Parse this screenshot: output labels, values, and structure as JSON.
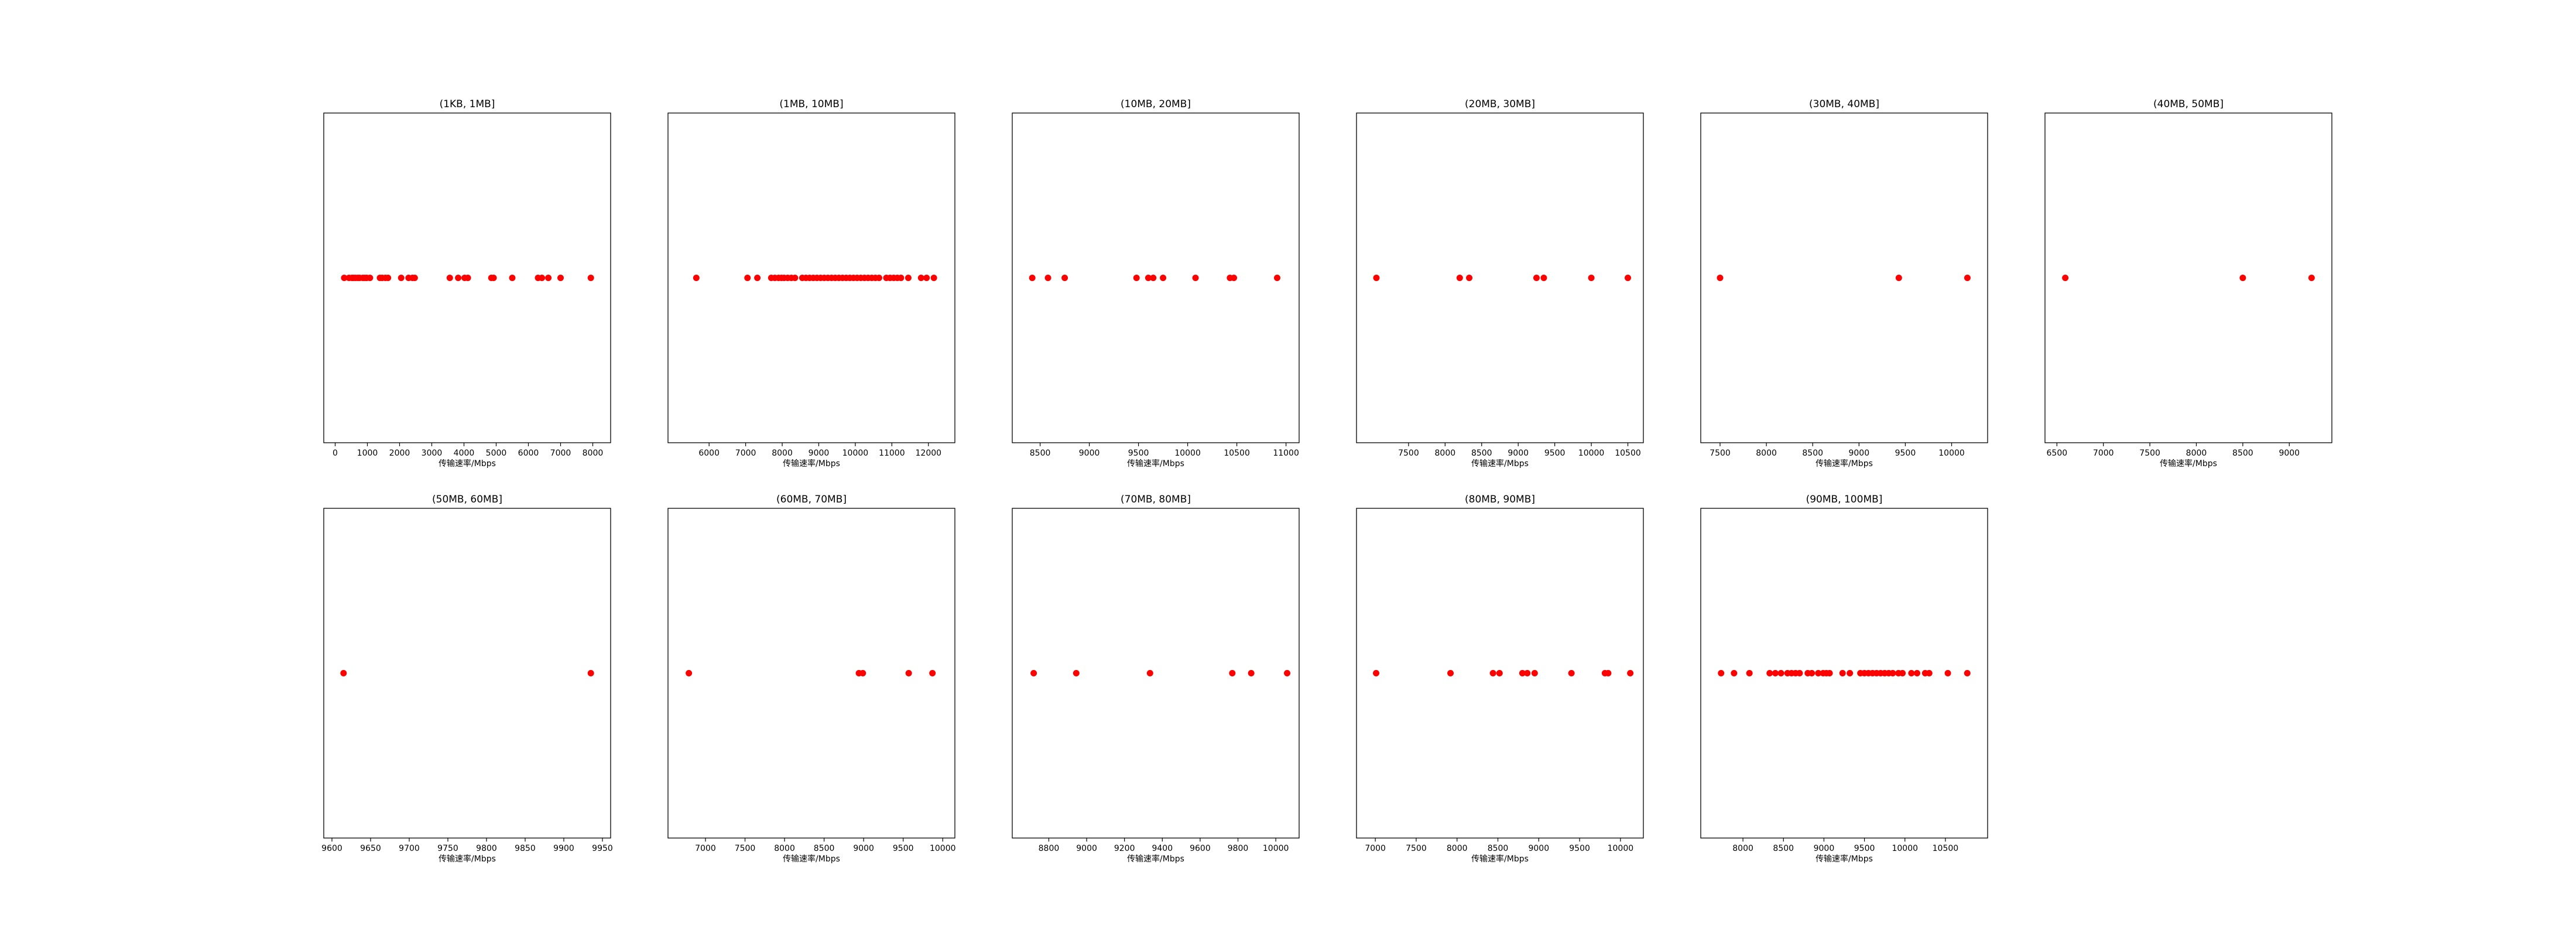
{
  "figure": {
    "background": "#ffffff",
    "marker_color": "#ff0000",
    "frame_color": "#000000"
  },
  "chart_data": [
    {
      "type": "scatter",
      "title": "(1KB, 1MB]",
      "xlabel": "传输速率/Mbps",
      "xlim": [
        -100,
        8300
      ],
      "xticks": [
        0,
        1000,
        2000,
        3000,
        4000,
        5000,
        6000,
        7000,
        8000
      ],
      "x": [
        280,
        430,
        520,
        570,
        630,
        700,
        760,
        860,
        920,
        980,
        1080,
        1390,
        1460,
        1560,
        1640,
        2050,
        2280,
        2400,
        2470,
        3560,
        3820,
        4020,
        4120,
        4850,
        4920,
        5500,
        6300,
        6420,
        6620,
        7000,
        7940
      ]
    },
    {
      "type": "scatter",
      "title": "(1MB, 10MB]",
      "xlabel": "传输速率/Mbps",
      "xlim": [
        5100,
        12500
      ],
      "xticks": [
        6000,
        7000,
        8000,
        9000,
        10000,
        11000,
        12000
      ],
      "x": [
        5650,
        7050,
        7320,
        7700,
        7800,
        7900,
        7980,
        8050,
        8150,
        8250,
        8350,
        8550,
        8650,
        8750,
        8850,
        8950,
        9050,
        9150,
        9250,
        9350,
        9450,
        9550,
        9650,
        9750,
        9850,
        9950,
        10050,
        10150,
        10250,
        10350,
        10450,
        10550,
        10650,
        10850,
        10950,
        11050,
        11150,
        11250,
        11450,
        11800,
        11950,
        12150
      ]
    },
    {
      "type": "scatter",
      "title": "(10MB, 20MB]",
      "xlabel": "传输速率/Mbps",
      "xlim": [
        8300,
        11050
      ],
      "xticks": [
        8500,
        9000,
        9500,
        10000,
        10500,
        11000
      ],
      "x": [
        8420,
        8580,
        8750,
        9480,
        9600,
        9650,
        9750,
        10080,
        10430,
        10470,
        10910
      ]
    },
    {
      "type": "scatter",
      "title": "(20MB, 30MB]",
      "xlabel": "传输速率/Mbps",
      "xlim": [
        6900,
        10600
      ],
      "xticks": [
        7500,
        8000,
        8500,
        9000,
        9500,
        10000,
        10500
      ],
      "x": [
        7060,
        8200,
        8330,
        9250,
        9350,
        10000,
        10500
      ]
    },
    {
      "type": "scatter",
      "title": "(30MB, 40MB]",
      "xlabel": "传输速率/Mbps",
      "xlim": [
        7380,
        10300
      ],
      "xticks": [
        7500,
        8000,
        8500,
        9000,
        9500,
        10000
      ],
      "x": [
        7500,
        9430,
        10170
      ]
    },
    {
      "type": "scatter",
      "title": "(40MB, 50MB]",
      "xlabel": "传输速率/Mbps",
      "xlim": [
        6460,
        9370
      ],
      "xticks": [
        6500,
        7000,
        7500,
        8000,
        8500,
        9000
      ],
      "x": [
        6590,
        8500,
        9240
      ]
    },
    {
      "type": "scatter",
      "title": "(50MB, 60MB]",
      "xlabel": "传输速率/Mbps",
      "xlim": [
        9600,
        9950
      ],
      "xticks": [
        9600,
        9650,
        9700,
        9750,
        9800,
        9850,
        9900,
        9950
      ],
      "x": [
        9615,
        9935
      ]
    },
    {
      "type": "scatter",
      "title": "(60MB, 70MB]",
      "xlabel": "传输速率/Mbps",
      "xlim": [
        6630,
        10050
      ],
      "xticks": [
        7000,
        7500,
        8000,
        8500,
        9000,
        9500,
        10000
      ],
      "x": [
        6790,
        8940,
        8990,
        9570,
        9870
      ]
    },
    {
      "type": "scatter",
      "title": "(70MB, 80MB]",
      "xlabel": "传输速率/Mbps",
      "xlim": [
        8650,
        10080
      ],
      "xticks": [
        8800,
        9000,
        9200,
        9400,
        9600,
        9800,
        10000
      ],
      "x": [
        8720,
        8945,
        9335,
        9770,
        9870,
        10060
      ]
    },
    {
      "type": "scatter",
      "title": "(80MB, 90MB]",
      "xlabel": "传输速率/Mbps",
      "xlim": [
        6870,
        10180
      ],
      "xticks": [
        7000,
        7500,
        8000,
        8500,
        9000,
        9500,
        10000
      ],
      "x": [
        7010,
        7920,
        8440,
        8520,
        8800,
        8860,
        8950,
        9400,
        9810,
        9850,
        10120
      ]
    },
    {
      "type": "scatter",
      "title": "(90MB, 100MB]",
      "xlabel": "传输速率/Mbps",
      "xlim": [
        7580,
        10920
      ],
      "xticks": [
        8000,
        8500,
        9000,
        9500,
        10000,
        10500
      ],
      "x": [
        7730,
        7890,
        8080,
        8330,
        8400,
        8470,
        8550,
        8600,
        8650,
        8700,
        8800,
        8850,
        8930,
        8990,
        9030,
        9070,
        9230,
        9320,
        9450,
        9500,
        9550,
        9600,
        9650,
        9700,
        9750,
        9800,
        9850,
        9920,
        9970,
        10080,
        10150,
        10250,
        10300,
        10530,
        10770
      ]
    }
  ]
}
